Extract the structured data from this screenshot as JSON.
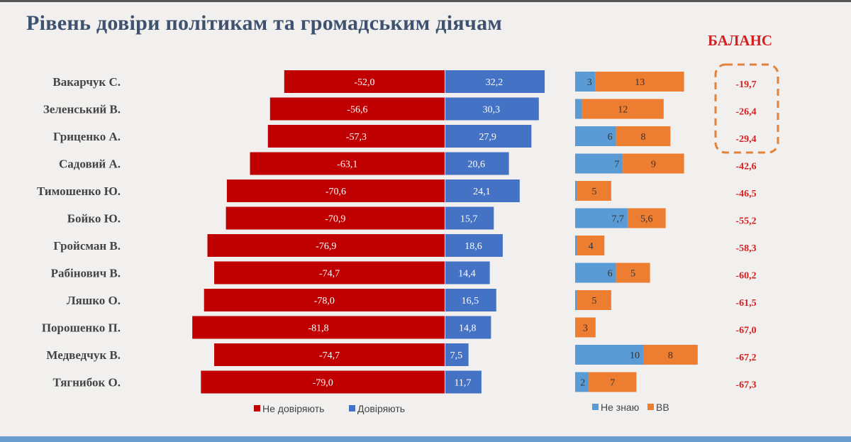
{
  "title": "Рівень довіри політикам та громадським діячам",
  "balance_title": "БАЛАНС",
  "chart_data": [
    {
      "type": "bar",
      "orientation": "horizontal-diverging",
      "categories": [
        "Вакарчук С.",
        "Зеленський В.",
        "Гриценко А.",
        "Садовий А.",
        "Тимошенко Ю.",
        "Бойко Ю.",
        "Гройсман В.",
        "Рабінович В.",
        "Ляшко О.",
        "Порошенко П.",
        "Медведчук В.",
        "Тягнибок О."
      ],
      "series": [
        {
          "name": "Не довіряють",
          "color": "#c00000",
          "values": [
            -52.0,
            -56.6,
            -57.3,
            -63.1,
            -70.6,
            -70.9,
            -76.9,
            -74.7,
            -78.0,
            -81.8,
            -74.7,
            -79.0
          ],
          "labels": [
            "-52,0",
            "-56,6",
            "-57,3",
            "-63,1",
            "-70,6",
            "-70,9",
            "-76,9",
            "-74,7",
            "-78,0",
            "-81,8",
            "-74,7",
            "-79,0"
          ]
        },
        {
          "name": "Довіряють",
          "color": "#4472c4",
          "values": [
            32.2,
            30.3,
            27.9,
            20.6,
            24.1,
            15.7,
            18.6,
            14.4,
            16.5,
            14.8,
            7.5,
            11.7
          ],
          "labels": [
            "32,2",
            "30,3",
            "27,9",
            "20,6",
            "24,1",
            "15,7",
            "18,6",
            "14,4",
            "16,5",
            "14,8",
            "7,5",
            "11,7"
          ]
        }
      ],
      "legend": "bottom"
    },
    {
      "type": "bar",
      "orientation": "horizontal-stacked",
      "series": [
        {
          "name": "Не знаю",
          "color": "#5b9bd5",
          "values": [
            3,
            1,
            6,
            7,
            0.3,
            7.7,
            0.3,
            6,
            0.3,
            0,
            10,
            2
          ],
          "labels": [
            "3",
            "",
            "6",
            "7",
            "",
            "7,7",
            "",
            "6",
            "",
            "",
            "10",
            "2"
          ]
        },
        {
          "name": "ВВ",
          "color": "#ed7d31",
          "values": [
            13,
            12,
            8,
            9,
            5,
            5.6,
            4,
            5,
            5,
            3,
            8,
            7
          ],
          "labels": [
            "13",
            "12",
            "8",
            "9",
            "5",
            "5,6",
            "4",
            "5",
            "5",
            "3",
            "8",
            "7"
          ]
        }
      ],
      "legend": "bottom"
    },
    {
      "type": "table",
      "title": "БАЛАНС",
      "values": [
        "-19,7",
        "-26,4",
        "-29,4",
        "-42,6",
        "-46,5",
        "-55,2",
        "-58,3",
        "-60,2",
        "-61,5",
        "-67,0",
        "-67,2",
        "-67,3"
      ],
      "highlighted_top": 3,
      "highlight_color": "#e0823a"
    }
  ]
}
